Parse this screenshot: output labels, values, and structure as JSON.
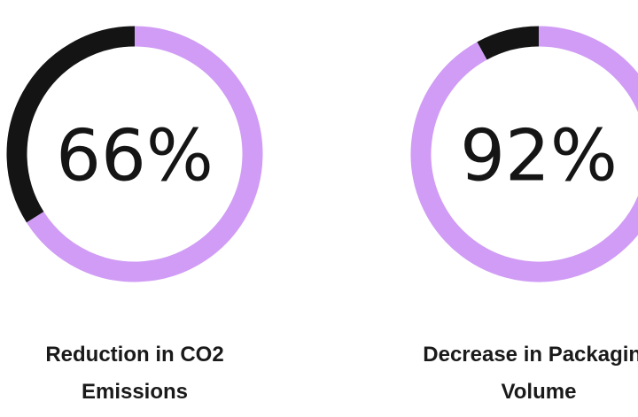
{
  "chart_data": [
    {
      "type": "donut",
      "title": "Reduction in CO2 Emissions",
      "values": [
        66
      ],
      "value_labels": [
        "66%"
      ],
      "ylim": [
        0,
        100
      ],
      "color": "#d09cf5",
      "track_color": "#141414"
    },
    {
      "type": "donut",
      "title": "Decrease in Packaging Volume",
      "values": [
        92
      ],
      "value_labels": [
        "92%"
      ],
      "ylim": [
        0,
        100
      ],
      "color": "#d09cf5",
      "track_color": "#141414"
    }
  ]
}
